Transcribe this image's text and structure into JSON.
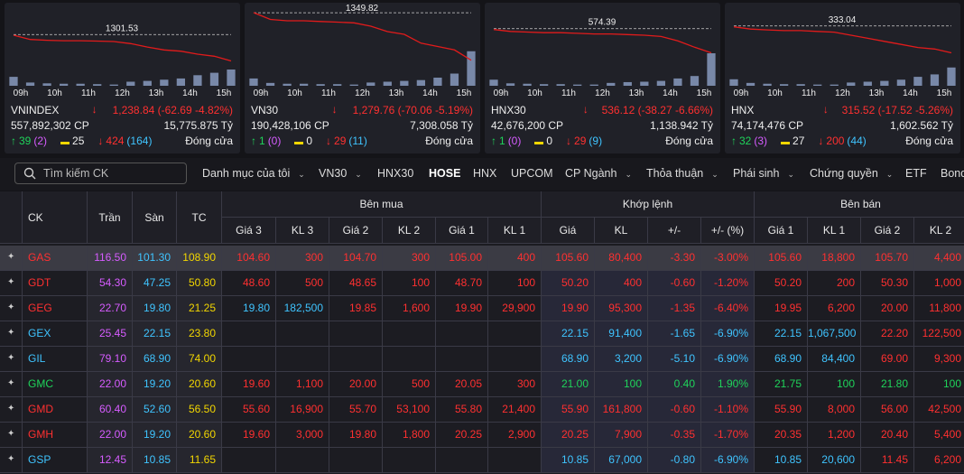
{
  "indices": [
    {
      "name": "VNINDEX",
      "change": "1,238.84 (-62.69 -4.82%)",
      "volume": "557,892,302 CP",
      "value": "15,775.875 Tỷ",
      "up": "39",
      "ceiling": "(2)",
      "unchanged": "25",
      "down": "424",
      "floor": "(164)",
      "status": "Đóng cửa",
      "ref": 1301.53,
      "ylim": [
        1180,
        1360
      ],
      "price": [
        1300,
        1290,
        1288,
        1287,
        1287,
        1286,
        1285,
        1280,
        1272,
        1265,
        1262,
        1255,
        1250,
        1238.84
      ],
      "bars": [
        22,
        8,
        6,
        5,
        5,
        4,
        3,
        10,
        12,
        15,
        18,
        26,
        32,
        40
      ],
      "barlim": [
        0,
        100
      ]
    },
    {
      "name": "VN30",
      "change": "1,279.76 (-70.06 -5.19%)",
      "volume": "190,428,106 CP",
      "value": "7,308.058 Tỷ",
      "up": "1",
      "ceiling": "(0)",
      "unchanged": "0",
      "down": "29",
      "floor": "(11)",
      "status": "Đóng cửa",
      "ref": 1349.82,
      "ylim": [
        1242,
        1354
      ],
      "price": [
        1350,
        1340,
        1338,
        1338,
        1337,
        1336,
        1335,
        1330,
        1322,
        1318,
        1305,
        1300,
        1295,
        1279.76
      ],
      "bars": [
        18,
        7,
        5,
        5,
        4,
        4,
        3,
        8,
        10,
        12,
        14,
        20,
        30,
        85
      ],
      "barlim": [
        0,
        100
      ]
    },
    {
      "name": "HNX30",
      "change": "536.12 (-38.27 -6.66%)",
      "volume": "42,676,200 CP",
      "value": "1,138.942 Tỷ",
      "up": "1",
      "ceiling": "(0)",
      "unchanged": "0",
      "down": "29",
      "floor": "(9)",
      "status": "Đóng cửa",
      "ref": 574.39,
      "ylim": [
        484,
        604
      ],
      "price": [
        573,
        570,
        569,
        568,
        568,
        567,
        566,
        566,
        565,
        564,
        562,
        555,
        545,
        536.12
      ],
      "bars": [
        15,
        6,
        5,
        4,
        4,
        3,
        3,
        7,
        9,
        10,
        12,
        18,
        24,
        80
      ],
      "barlim": [
        0,
        100
      ]
    },
    {
      "name": "HNX",
      "change": "315.52 (-17.52 -5.26%)",
      "volume": "74,174,476 CP",
      "value": "1,602.562 Tỷ",
      "up": "32",
      "ceiling": "(3)",
      "unchanged": "27",
      "down": "200",
      "floor": "(44)",
      "status": "Đóng cửa",
      "ref": 333.04,
      "ylim": [
        294,
        343.5
      ],
      "price": [
        332.5,
        331,
        330.5,
        330,
        330,
        329.5,
        329,
        327,
        325,
        323,
        321,
        319,
        318,
        315.52
      ],
      "bars": [
        16,
        7,
        5,
        4,
        4,
        3,
        3,
        8,
        10,
        12,
        15,
        22,
        28,
        45
      ],
      "barlim": [
        0,
        100
      ]
    }
  ],
  "time_labels": [
    "09h",
    "10h",
    "11h",
    "12h",
    "13h",
    "14h",
    "15h"
  ],
  "search_placeholder": "Tìm kiếm CK",
  "tabs": [
    {
      "label": "Danh mục của tôi",
      "menu": true
    },
    {
      "label": "VN30",
      "menu": true
    },
    {
      "label": "HNX30",
      "menu": false
    },
    {
      "label": "HOSE",
      "menu": false
    },
    {
      "label": "HNX",
      "menu": false
    },
    {
      "label": "UPCOM",
      "menu": false
    },
    {
      "label": "CP Ngành",
      "menu": true
    },
    {
      "label": "Thỏa thuận",
      "menu": true
    },
    {
      "label": "Phái sinh",
      "menu": true
    },
    {
      "label": "Chứng quyền",
      "menu": true
    },
    {
      "label": "ETF",
      "menu": false
    },
    {
      "label": "Bond",
      "menu": false
    }
  ],
  "active_tab": 3,
  "table": {
    "groups": [
      "Bên mua",
      "Khớp lệnh",
      "Bên bán"
    ],
    "columns": [
      "CK",
      "Trần",
      "Sàn",
      "TC",
      "Giá 3",
      "KL 3",
      "Giá 2",
      "KL 2",
      "Giá 1",
      "KL 1",
      "Giá",
      "KL",
      "+/-",
      "+/- (%)",
      "Giá 1",
      "KL 1",
      "Giá 2",
      "KL 2"
    ],
    "highlight_row": 0,
    "rows": [
      [
        "GAS",
        "116.50",
        "101.30",
        "108.90",
        "104.60",
        "300",
        "104.70",
        "300",
        "105.00",
        "400",
        "105.60",
        "80,400",
        "-3.30",
        "-3.00%",
        "105.60",
        "18,800",
        "105.70",
        "4,400"
      ],
      [
        "GDT",
        "54.30",
        "47.25",
        "50.80",
        "48.60",
        "500",
        "48.65",
        "100",
        "48.70",
        "100",
        "50.20",
        "400",
        "-0.60",
        "-1.20%",
        "50.20",
        "200",
        "50.30",
        "1,000"
      ],
      [
        "GEG",
        "22.70",
        "19.80",
        "21.25",
        "19.80",
        "182,500",
        "19.85",
        "1,600",
        "19.90",
        "29,900",
        "19.90",
        "95,300",
        "-1.35",
        "-6.40%",
        "19.95",
        "6,200",
        "20.00",
        "11,800"
      ],
      [
        "GEX",
        "25.45",
        "22.15",
        "23.80",
        null,
        null,
        null,
        null,
        null,
        null,
        "22.15",
        "91,400",
        "-1.65",
        "-6.90%",
        "22.15",
        "1,067,500",
        "22.20",
        "122,500"
      ],
      [
        "GIL",
        "79.10",
        "68.90",
        "74.00",
        null,
        null,
        null,
        null,
        null,
        null,
        "68.90",
        "3,200",
        "-5.10",
        "-6.90%",
        "68.90",
        "84,400",
        "69.00",
        "9,300"
      ],
      [
        "GMC",
        "22.00",
        "19.20",
        "20.60",
        "19.60",
        "1,100",
        "20.00",
        "500",
        "20.05",
        "300",
        "21.00",
        "100",
        "0.40",
        "1.90%",
        "21.75",
        "100",
        "21.80",
        "100"
      ],
      [
        "GMD",
        "60.40",
        "52.60",
        "56.50",
        "55.60",
        "16,900",
        "55.70",
        "53,100",
        "55.80",
        "21,400",
        "55.90",
        "161,800",
        "-0.60",
        "-1.10%",
        "55.90",
        "8,000",
        "56.00",
        "42,500"
      ],
      [
        "GMH",
        "22.00",
        "19.20",
        "20.60",
        "19.60",
        "3,000",
        "19.80",
        "1,800",
        "20.25",
        "2,900",
        "20.25",
        "7,900",
        "-0.35",
        "-1.70%",
        "20.35",
        "1,200",
        "20.40",
        "5,400"
      ],
      [
        "GSP",
        "12.45",
        "10.85",
        "11.65",
        null,
        null,
        null,
        null,
        null,
        null,
        "10.85",
        "67,000",
        "-0.80",
        "-6.90%",
        "10.85",
        "20,600",
        "11.45",
        "6,200"
      ]
    ]
  }
}
